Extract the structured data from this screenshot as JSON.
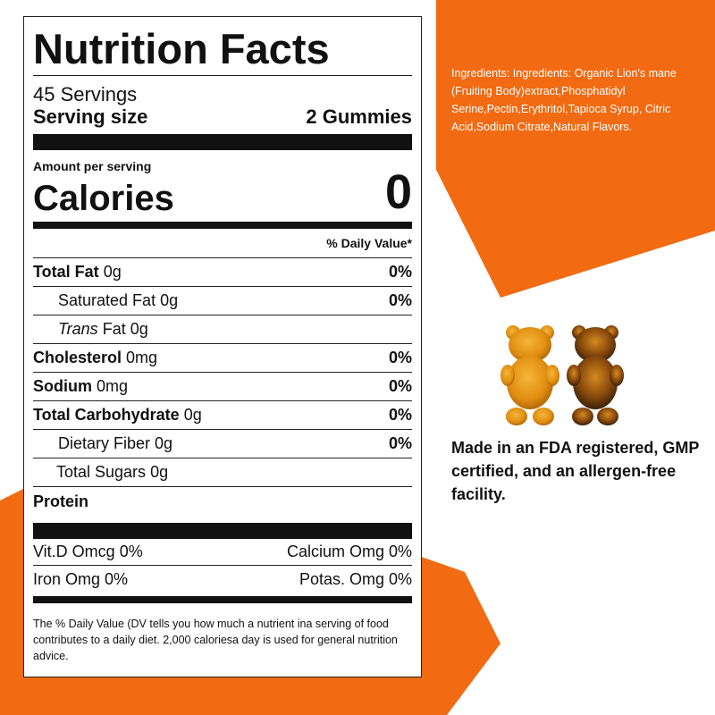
{
  "colors": {
    "accent": "#f26a12",
    "text": "#111111",
    "white": "#ffffff"
  },
  "label": {
    "title": "Nutrition Facts",
    "servings": "45 Servings",
    "serving_size_label": "Serving size",
    "serving_size_value": "2 Gummies",
    "amount_per_serving": "Amount per serving",
    "calories_label": "Calories",
    "calories_value": "0",
    "daily_value_header": "% Daily Value*",
    "nutrients": [
      {
        "name": "Total Fat",
        "amount": "0g",
        "pct": "0%"
      },
      {
        "name": "Saturated Fat",
        "amount": "0g",
        "pct": "0%"
      },
      {
        "name": "Trans",
        "name2": "Fat",
        "amount": "0g",
        "pct": ""
      },
      {
        "name": "Cholesterol",
        "amount": "0mg",
        "pct": "0%"
      },
      {
        "name": "Sodium",
        "amount": "0mg",
        "pct": "0%"
      },
      {
        "name": "Total Carbohydrate",
        "amount": "0g",
        "pct": "0%"
      },
      {
        "name": "Dietary Fiber",
        "amount": "0g",
        "pct": "0%"
      },
      {
        "name": "Total Sugars",
        "amount": "0g",
        "pct": ""
      },
      {
        "name": "Protein",
        "amount": "",
        "pct": ""
      }
    ],
    "vitamins": [
      {
        "left": "Vit.D Omcg 0%",
        "right": "Calcium Omg 0%"
      },
      {
        "left": "Iron Omg 0%",
        "right": "Potas. Omg 0%"
      }
    ],
    "footnote": "The % Daily Value (DV tells you how much a nutrient ina serving of food contributes to a daily diet. 2,000 caloriesa day is used for general nutrition advice."
  },
  "ingredients_text": "Ingredients: Ingredients: Organic Lion's mane (Fruiting Body)extract,Phosphatidyl Serine,Pectin,Erythritol,Tapioca Syrup, Citric Acid,Sodium Citrate,Natural Flavors.",
  "facility_text": "Made in an FDA registered, GMP certified, and an allergen-free facility."
}
